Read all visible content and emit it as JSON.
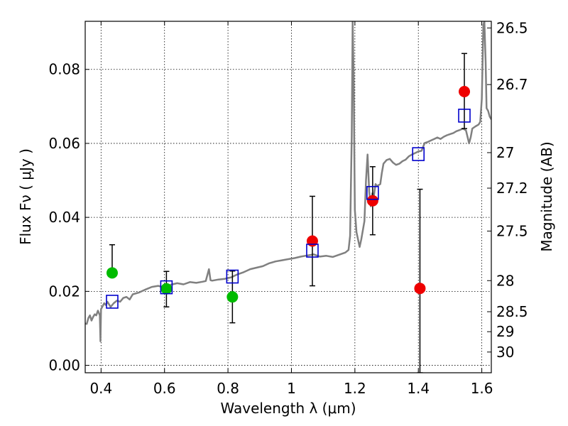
{
  "chart_data": {
    "type": "scatter",
    "xlabel": "Wavelength  λ (μm)",
    "ylabel": "Flux  Fν  ( μJy )",
    "y2label": "Magnitude (AB)",
    "xlim": [
      0.35,
      1.63
    ],
    "ylim": [
      -0.002,
      0.093
    ],
    "grid": true,
    "x_ticks": [
      {
        "value": 0.4,
        "label": "0.4"
      },
      {
        "value": 0.6,
        "label": "0.6"
      },
      {
        "value": 0.8,
        "label": "0.8"
      },
      {
        "value": 1.0,
        "label": "1"
      },
      {
        "value": 1.2,
        "label": "1.2"
      },
      {
        "value": 1.4,
        "label": "1.4"
      },
      {
        "value": 1.6,
        "label": "1.6"
      }
    ],
    "y_ticks": [
      {
        "value": 0.0,
        "label": "0.00"
      },
      {
        "value": 0.02,
        "label": "0.02"
      },
      {
        "value": 0.04,
        "label": "0.04"
      },
      {
        "value": 0.06,
        "label": "0.06"
      },
      {
        "value": 0.08,
        "label": "0.08"
      }
    ],
    "y2_ticks": [
      {
        "flux": 0.0912,
        "label": "26.5"
      },
      {
        "flux": 0.0759,
        "label": "26.7"
      },
      {
        "flux": 0.0575,
        "label": "27"
      },
      {
        "flux": 0.0479,
        "label": "27.2"
      },
      {
        "flux": 0.0363,
        "label": "27.5"
      },
      {
        "flux": 0.0229,
        "label": "28"
      },
      {
        "flux": 0.0145,
        "label": "28.5"
      },
      {
        "flux": 0.0091,
        "label": "29"
      },
      {
        "flux": 0.0036,
        "label": "30"
      }
    ],
    "series": [
      {
        "marker": "circle",
        "color": "#00bb00",
        "points": [
          {
            "x": 0.435,
            "y": 0.025,
            "yerr_low": 0.025,
            "yerr_high": 0.0326
          },
          {
            "x": 0.606,
            "y": 0.0207,
            "yerr_low": 0.0158,
            "yerr_high": 0.0254
          },
          {
            "x": 0.814,
            "y": 0.0185,
            "yerr_low": 0.0115,
            "yerr_high": 0.0255
          }
        ]
      },
      {
        "marker": "circle",
        "color": "#ee0000",
        "points": [
          {
            "x": 1.066,
            "y": 0.0336,
            "yerr_low": 0.0215,
            "yerr_high": 0.0457
          },
          {
            "x": 1.256,
            "y": 0.0445,
            "yerr_low": 0.0353,
            "yerr_high": 0.0537
          },
          {
            "x": 1.405,
            "y": 0.0208,
            "yerr_low": -0.002,
            "yerr_high": 0.0476
          },
          {
            "x": 1.545,
            "y": 0.074,
            "yerr_low": 0.064,
            "yerr_high": 0.0843
          }
        ]
      },
      {
        "marker": "open-square",
        "color": "#0000cc",
        "points": [
          {
            "x": 0.435,
            "y": 0.0172
          },
          {
            "x": 0.606,
            "y": 0.0211
          },
          {
            "x": 0.814,
            "y": 0.024
          },
          {
            "x": 1.066,
            "y": 0.031
          },
          {
            "x": 1.256,
            "y": 0.0466
          },
          {
            "x": 1.4,
            "y": 0.0571
          },
          {
            "x": 1.545,
            "y": 0.0675
          }
        ]
      }
    ],
    "model_spectrum": {
      "color": "#808080",
      "points": [
        [
          0.35,
          0.0113
        ],
        [
          0.355,
          0.0112
        ],
        [
          0.36,
          0.0128
        ],
        [
          0.365,
          0.0135
        ],
        [
          0.37,
          0.0121
        ],
        [
          0.375,
          0.0131
        ],
        [
          0.38,
          0.0138
        ],
        [
          0.385,
          0.0135
        ],
        [
          0.39,
          0.0148
        ],
        [
          0.393,
          0.0142
        ],
        [
          0.396,
          0.0135
        ],
        [
          0.398,
          0.0065
        ],
        [
          0.4,
          0.0152
        ],
        [
          0.405,
          0.016
        ],
        [
          0.41,
          0.0168
        ],
        [
          0.415,
          0.0163
        ],
        [
          0.42,
          0.0172
        ],
        [
          0.43,
          0.0158
        ],
        [
          0.44,
          0.0168
        ],
        [
          0.45,
          0.0175
        ],
        [
          0.46,
          0.0172
        ],
        [
          0.47,
          0.0182
        ],
        [
          0.48,
          0.0185
        ],
        [
          0.49,
          0.0178
        ],
        [
          0.5,
          0.0192
        ],
        [
          0.52,
          0.0197
        ],
        [
          0.54,
          0.0205
        ],
        [
          0.56,
          0.0212
        ],
        [
          0.58,
          0.0215
        ],
        [
          0.6,
          0.021
        ],
        [
          0.62,
          0.0218
        ],
        [
          0.64,
          0.0222
        ],
        [
          0.66,
          0.0219
        ],
        [
          0.68,
          0.0225
        ],
        [
          0.7,
          0.0223
        ],
        [
          0.72,
          0.0226
        ],
        [
          0.73,
          0.0228
        ],
        [
          0.74,
          0.026
        ],
        [
          0.745,
          0.023
        ],
        [
          0.75,
          0.0229
        ],
        [
          0.77,
          0.0232
        ],
        [
          0.79,
          0.0234
        ],
        [
          0.81,
          0.0238
        ],
        [
          0.83,
          0.0246
        ],
        [
          0.85,
          0.0252
        ],
        [
          0.87,
          0.026
        ],
        [
          0.89,
          0.0264
        ],
        [
          0.91,
          0.0268
        ],
        [
          0.93,
          0.0276
        ],
        [
          0.95,
          0.0281
        ],
        [
          0.97,
          0.0284
        ],
        [
          0.99,
          0.0287
        ],
        [
          1.01,
          0.029
        ],
        [
          1.03,
          0.0294
        ],
        [
          1.05,
          0.0297
        ],
        [
          1.07,
          0.03
        ],
        [
          1.09,
          0.0294
        ],
        [
          1.11,
          0.0296
        ],
        [
          1.13,
          0.0293
        ],
        [
          1.15,
          0.0299
        ],
        [
          1.17,
          0.0305
        ],
        [
          1.18,
          0.0312
        ],
        [
          1.185,
          0.035
        ],
        [
          1.19,
          0.062
        ],
        [
          1.193,
          0.093
        ],
        [
          1.196,
          0.078
        ],
        [
          1.2,
          0.042
        ],
        [
          1.205,
          0.036
        ],
        [
          1.21,
          0.034
        ],
        [
          1.215,
          0.032
        ],
        [
          1.22,
          0.034
        ],
        [
          1.23,
          0.039
        ],
        [
          1.235,
          0.05
        ],
        [
          1.24,
          0.057
        ],
        [
          1.245,
          0.047
        ],
        [
          1.25,
          0.043
        ],
        [
          1.255,
          0.0465
        ],
        [
          1.26,
          0.046
        ],
        [
          1.265,
          0.049
        ],
        [
          1.27,
          0.0485
        ],
        [
          1.28,
          0.049
        ],
        [
          1.285,
          0.052
        ],
        [
          1.29,
          0.0545
        ],
        [
          1.3,
          0.0555
        ],
        [
          1.31,
          0.0558
        ],
        [
          1.32,
          0.0548
        ],
        [
          1.33,
          0.0542
        ],
        [
          1.34,
          0.0545
        ],
        [
          1.35,
          0.0552
        ],
        [
          1.36,
          0.0556
        ],
        [
          1.37,
          0.0565
        ],
        [
          1.38,
          0.057
        ],
        [
          1.39,
          0.0574
        ],
        [
          1.4,
          0.0578
        ],
        [
          1.41,
          0.058
        ],
        [
          1.42,
          0.0601
        ],
        [
          1.43,
          0.0604
        ],
        [
          1.44,
          0.0608
        ],
        [
          1.45,
          0.0612
        ],
        [
          1.46,
          0.0616
        ],
        [
          1.47,
          0.0612
        ],
        [
          1.48,
          0.0618
        ],
        [
          1.49,
          0.0622
        ],
        [
          1.5,
          0.0625
        ],
        [
          1.51,
          0.0628
        ],
        [
          1.52,
          0.0633
        ],
        [
          1.53,
          0.0636
        ],
        [
          1.54,
          0.064
        ],
        [
          1.55,
          0.0635
        ],
        [
          1.56,
          0.06
        ],
        [
          1.565,
          0.0617
        ],
        [
          1.57,
          0.064
        ],
        [
          1.58,
          0.0646
        ],
        [
          1.59,
          0.0651
        ],
        [
          1.595,
          0.0658
        ],
        [
          1.6,
          0.072
        ],
        [
          1.605,
          0.092
        ],
        [
          1.608,
          0.093
        ],
        [
          1.612,
          0.082
        ],
        [
          1.615,
          0.0695
        ],
        [
          1.62,
          0.0688
        ],
        [
          1.625,
          0.0672
        ],
        [
          1.63,
          0.0665
        ]
      ]
    }
  }
}
